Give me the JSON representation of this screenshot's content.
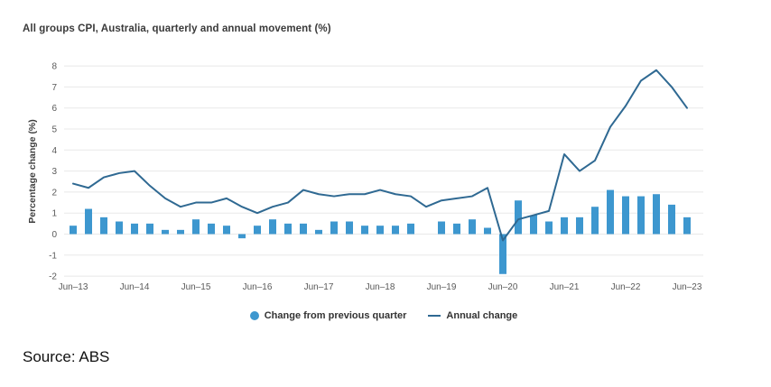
{
  "page": {
    "source_note": "Source: ABS"
  },
  "chart_data": {
    "type": "combo",
    "title": "All groups CPI, Australia, quarterly and annual movement (%)",
    "xlabel": "",
    "ylabel": "Percentage change (%)",
    "ylim": [
      -2,
      8
    ],
    "yticks": [
      -2,
      -1,
      0,
      1,
      2,
      3,
      4,
      5,
      6,
      7,
      8
    ],
    "grid": "horizontal",
    "legend_position": "bottom",
    "categories": [
      "Jun-13",
      "Sep-13",
      "Dec-13",
      "Mar-14",
      "Jun-14",
      "Sep-14",
      "Dec-14",
      "Mar-15",
      "Jun-15",
      "Sep-15",
      "Dec-15",
      "Mar-16",
      "Jun-16",
      "Sep-16",
      "Dec-16",
      "Mar-17",
      "Jun-17",
      "Sep-17",
      "Dec-17",
      "Mar-18",
      "Jun-18",
      "Sep-18",
      "Dec-18",
      "Mar-19",
      "Jun-19",
      "Sep-19",
      "Dec-19",
      "Mar-20",
      "Jun-20",
      "Sep-20",
      "Dec-20",
      "Mar-21",
      "Jun-21",
      "Sep-21",
      "Dec-21",
      "Mar-22",
      "Jun-22",
      "Sep-22",
      "Dec-22",
      "Mar-23",
      "Jun-23"
    ],
    "x_tick_labels": [
      "Jun–13",
      "Jun–14",
      "Jun–15",
      "Jun–16",
      "Jun–17",
      "Jun–18",
      "Jun–19",
      "Jun–20",
      "Jun–21",
      "Jun–22",
      "Jun–23"
    ],
    "x_tick_every": 4,
    "series": [
      {
        "name": "Change from previous quarter",
        "type": "bar",
        "color": "#3d97cf",
        "values": [
          0.4,
          1.2,
          0.8,
          0.6,
          0.5,
          0.5,
          0.2,
          0.2,
          0.7,
          0.5,
          0.4,
          -0.2,
          0.4,
          0.7,
          0.5,
          0.5,
          0.2,
          0.6,
          0.6,
          0.4,
          0.4,
          0.4,
          0.5,
          0.0,
          0.6,
          0.5,
          0.7,
          0.3,
          -1.9,
          1.6,
          0.9,
          0.6,
          0.8,
          0.8,
          1.3,
          2.1,
          1.8,
          1.8,
          1.9,
          1.4,
          0.8
        ]
      },
      {
        "name": "Annual change",
        "type": "line",
        "color": "#2f6992",
        "values": [
          2.4,
          2.2,
          2.7,
          2.9,
          3.0,
          2.3,
          1.7,
          1.3,
          1.5,
          1.5,
          1.7,
          1.3,
          1.0,
          1.3,
          1.5,
          2.1,
          1.9,
          1.8,
          1.9,
          1.9,
          2.1,
          1.9,
          1.8,
          1.3,
          1.6,
          1.7,
          1.8,
          2.2,
          -0.3,
          0.7,
          0.9,
          1.1,
          3.8,
          3.0,
          3.5,
          5.1,
          6.1,
          7.3,
          7.8,
          7.0,
          6.0
        ]
      }
    ],
    "colors": {
      "grid": "#e8e8e8",
      "tick_label": "#595959",
      "axis_title": "#3d3d3d"
    }
  }
}
